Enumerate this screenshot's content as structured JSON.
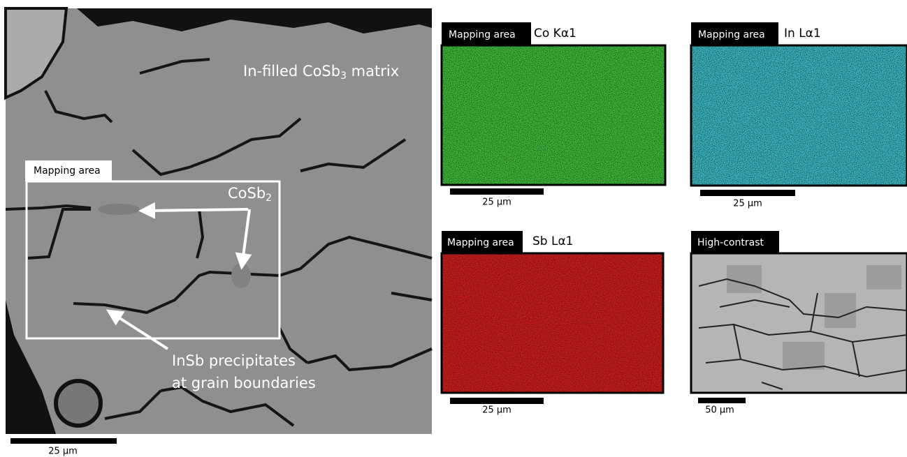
{
  "main_image": {
    "matrix_label": {
      "text": "In-filled CoSb",
      "sub": "3",
      "tail": " matrix"
    },
    "mapping_tag": "Mapping area",
    "cosb2_label": {
      "text": "CoSb",
      "sub": "2"
    },
    "insb_label": [
      "InSb precipitates",
      "at grain boundaries"
    ],
    "scale_bar": "25 µm"
  },
  "panels": [
    {
      "tag": "Mapping area",
      "element": "Co Kα1",
      "scale_bar": "25 µm"
    },
    {
      "tag": "Mapping area",
      "element": "In Lα1",
      "scale_bar": "25 µm"
    },
    {
      "tag": "Mapping area",
      "element": "Sb Lα1",
      "scale_bar": "25 µm"
    },
    {
      "tag": "High-contrast",
      "scale_bar": "50 µm"
    }
  ]
}
